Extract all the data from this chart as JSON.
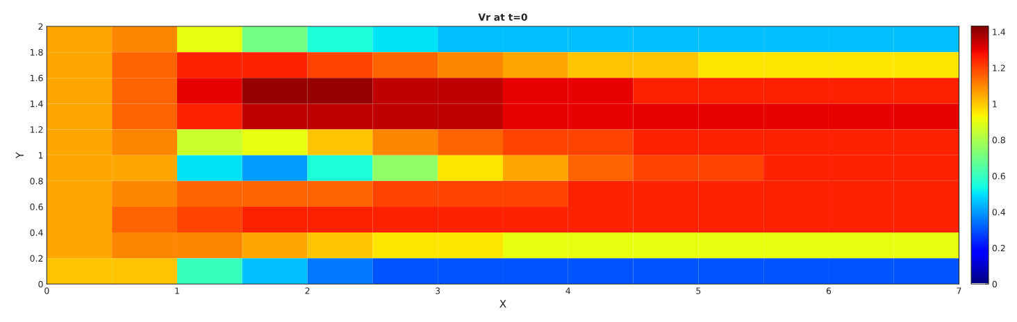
{
  "chart_data": {
    "type": "heatmap",
    "title": "Vr at t=0",
    "xlabel": "X",
    "ylabel": "Y",
    "x": [
      0.25,
      0.75,
      1.25,
      1.75,
      2.25,
      2.75,
      3.25,
      3.75,
      4.25,
      4.75,
      5.25,
      5.75,
      6.25,
      6.75
    ],
    "y": [
      1.9,
      1.7,
      1.5,
      1.3,
      1.1,
      0.9,
      0.7,
      0.5,
      0.3,
      0.1
    ],
    "cells": [
      [
        1.05,
        1.1,
        0.9,
        0.7,
        0.55,
        0.5,
        0.45,
        0.45,
        0.45,
        0.45,
        0.45,
        0.45,
        0.45,
        0.45
      ],
      [
        1.05,
        1.15,
        1.25,
        1.25,
        1.2,
        1.15,
        1.1,
        1.05,
        1.0,
        1.0,
        0.95,
        0.95,
        0.95,
        0.95
      ],
      [
        1.05,
        1.15,
        1.3,
        1.4,
        1.4,
        1.35,
        1.35,
        1.3,
        1.3,
        1.25,
        1.25,
        1.25,
        1.25,
        1.25
      ],
      [
        1.05,
        1.15,
        1.25,
        1.35,
        1.35,
        1.35,
        1.35,
        1.3,
        1.3,
        1.3,
        1.3,
        1.3,
        1.3,
        1.3
      ],
      [
        1.05,
        1.1,
        0.85,
        0.9,
        1.0,
        1.1,
        1.15,
        1.2,
        1.2,
        1.25,
        1.25,
        1.25,
        1.25,
        1.25
      ],
      [
        1.05,
        1.05,
        0.5,
        0.4,
        0.55,
        0.75,
        0.95,
        1.05,
        1.15,
        1.2,
        1.2,
        1.25,
        1.25,
        1.25
      ],
      [
        1.05,
        1.1,
        1.15,
        1.15,
        1.15,
        1.2,
        1.2,
        1.2,
        1.25,
        1.25,
        1.25,
        1.25,
        1.25,
        1.25
      ],
      [
        1.05,
        1.15,
        1.2,
        1.25,
        1.25,
        1.25,
        1.25,
        1.25,
        1.25,
        1.25,
        1.25,
        1.25,
        1.25,
        1.25
      ],
      [
        1.05,
        1.1,
        1.1,
        1.05,
        1.0,
        0.95,
        0.95,
        0.9,
        0.9,
        0.9,
        0.9,
        0.9,
        0.9,
        0.9
      ],
      [
        1.0,
        1.0,
        0.6,
        0.45,
        0.35,
        0.3,
        0.3,
        0.3,
        0.3,
        0.3,
        0.3,
        0.3,
        0.3,
        0.3
      ]
    ],
    "xlim": [
      0,
      7
    ],
    "ylim": [
      0,
      2
    ],
    "xticks": [
      0,
      1,
      2,
      3,
      4,
      5,
      6,
      7
    ],
    "yticks": [
      0,
      0.2,
      0.4,
      0.6,
      0.8,
      1,
      1.2,
      1.4,
      1.6,
      1.8,
      2
    ],
    "clim": [
      0,
      1.43
    ],
    "cticks": [
      0,
      0.2,
      0.4,
      0.6,
      0.8,
      1,
      1.2,
      1.4
    ]
  }
}
